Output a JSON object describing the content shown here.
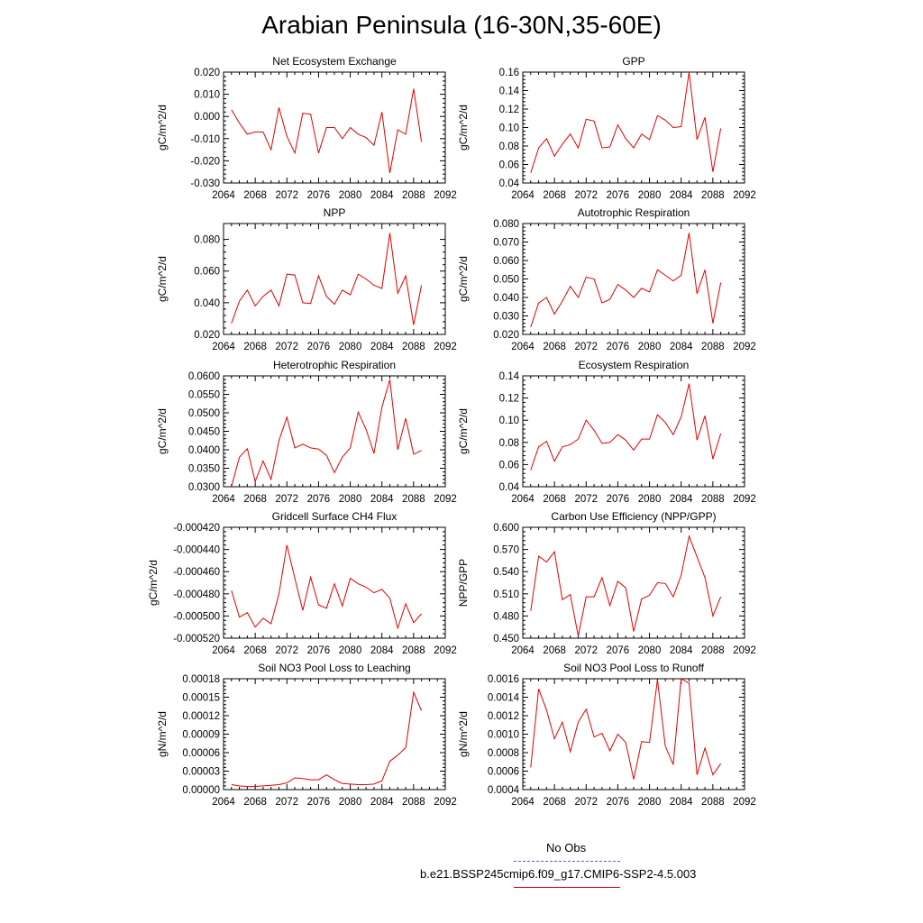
{
  "title": "Arabian Peninsula (16-30N,35-60E)",
  "legend": {
    "obs_label": "No Obs",
    "case_label": "b.e21.BSSP245cmip6.f09_g17.CMIP6-SSP2-4.5.003",
    "obs_color": "#5a5ad0",
    "case_color": "#e00000"
  },
  "chart_data": [
    {
      "type": "line",
      "title": "Net Ecosystem Exchange",
      "ylabel": "gC/m^2/d",
      "xlim": [
        2064,
        2092
      ],
      "ylim": [
        -0.03,
        0.02
      ],
      "yticks": [
        -0.03,
        -0.02,
        -0.01,
        0.0,
        0.01,
        0.02
      ],
      "ytick_labels": [
        "-0.030",
        "-0.020",
        "-0.010",
        "0.000",
        "0.010",
        "0.020"
      ],
      "xticks": [
        2064,
        2068,
        2072,
        2076,
        2080,
        2084,
        2088,
        2092
      ],
      "x": [
        2065,
        2066,
        2067,
        2068,
        2069,
        2070,
        2071,
        2072,
        2073,
        2074,
        2075,
        2076,
        2077,
        2078,
        2079,
        2080,
        2081,
        2082,
        2083,
        2084,
        2085,
        2086,
        2087,
        2088,
        2089
      ],
      "values": [
        0.003,
        -0.003,
        -0.008,
        -0.007,
        -0.007,
        -0.015,
        0.004,
        -0.009,
        -0.0165,
        0.0015,
        0.001,
        -0.0165,
        -0.005,
        -0.005,
        -0.01,
        -0.005,
        -0.008,
        -0.0095,
        -0.013,
        0.002,
        -0.0255,
        -0.006,
        -0.008,
        0.0125,
        -0.0115
      ]
    },
    {
      "type": "line",
      "title": "GPP",
      "ylabel": "gC/m^2/d",
      "xlim": [
        2064,
        2092
      ],
      "ylim": [
        0.04,
        0.16
      ],
      "yticks": [
        0.04,
        0.06,
        0.08,
        0.1,
        0.12,
        0.14,
        0.16
      ],
      "ytick_labels": [
        "0.04",
        "0.06",
        "0.08",
        "0.10",
        "0.12",
        "0.14",
        "0.16"
      ],
      "xticks": [
        2064,
        2068,
        2072,
        2076,
        2080,
        2084,
        2088,
        2092
      ],
      "x": [
        2065,
        2066,
        2067,
        2068,
        2069,
        2070,
        2071,
        2072,
        2073,
        2074,
        2075,
        2076,
        2077,
        2078,
        2079,
        2080,
        2081,
        2082,
        2083,
        2084,
        2085,
        2086,
        2087,
        2088,
        2089
      ],
      "values": [
        0.051,
        0.078,
        0.088,
        0.069,
        0.082,
        0.093,
        0.078,
        0.109,
        0.107,
        0.078,
        0.079,
        0.103,
        0.088,
        0.078,
        0.093,
        0.087,
        0.113,
        0.108,
        0.1,
        0.101,
        0.16,
        0.087,
        0.111,
        0.052,
        0.099
      ]
    },
    {
      "type": "line",
      "title": "NPP",
      "ylabel": "gC/m^2/d",
      "xlim": [
        2064,
        2092
      ],
      "ylim": [
        0.02,
        0.09
      ],
      "yticks": [
        0.02,
        0.04,
        0.06,
        0.08
      ],
      "ytick_labels": [
        "0.020",
        "0.040",
        "0.060",
        "0.080"
      ],
      "xticks": [
        2064,
        2068,
        2072,
        2076,
        2080,
        2084,
        2088,
        2092
      ],
      "x": [
        2065,
        2066,
        2067,
        2068,
        2069,
        2070,
        2071,
        2072,
        2073,
        2074,
        2075,
        2076,
        2077,
        2078,
        2079,
        2080,
        2081,
        2082,
        2083,
        2084,
        2085,
        2086,
        2087,
        2088,
        2089
      ],
      "values": [
        0.027,
        0.041,
        0.048,
        0.038,
        0.044,
        0.048,
        0.038,
        0.058,
        0.0575,
        0.04,
        0.0395,
        0.057,
        0.044,
        0.039,
        0.048,
        0.045,
        0.058,
        0.055,
        0.051,
        0.049,
        0.084,
        0.046,
        0.057,
        0.026,
        0.051
      ]
    },
    {
      "type": "line",
      "title": "Autotrophic Respiration",
      "ylabel": "gC/m^2/d",
      "xlim": [
        2064,
        2092
      ],
      "ylim": [
        0.02,
        0.08
      ],
      "yticks": [
        0.02,
        0.03,
        0.04,
        0.05,
        0.06,
        0.07,
        0.08
      ],
      "ytick_labels": [
        "0.020",
        "0.030",
        "0.040",
        "0.050",
        "0.060",
        "0.070",
        "0.080"
      ],
      "xticks": [
        2064,
        2068,
        2072,
        2076,
        2080,
        2084,
        2088,
        2092
      ],
      "x": [
        2065,
        2066,
        2067,
        2068,
        2069,
        2070,
        2071,
        2072,
        2073,
        2074,
        2075,
        2076,
        2077,
        2078,
        2079,
        2080,
        2081,
        2082,
        2083,
        2084,
        2085,
        2086,
        2087,
        2088,
        2089
      ],
      "values": [
        0.024,
        0.037,
        0.04,
        0.031,
        0.038,
        0.046,
        0.04,
        0.051,
        0.05,
        0.037,
        0.039,
        0.047,
        0.044,
        0.04,
        0.045,
        0.043,
        0.055,
        0.052,
        0.049,
        0.052,
        0.075,
        0.042,
        0.055,
        0.026,
        0.048
      ]
    },
    {
      "type": "line",
      "title": "Heterotrophic Respiration",
      "ylabel": "gC/m^2/d",
      "xlim": [
        2064,
        2092
      ],
      "ylim": [
        0.03,
        0.06
      ],
      "yticks": [
        0.03,
        0.035,
        0.04,
        0.045,
        0.05,
        0.055,
        0.06
      ],
      "ytick_labels": [
        "0.0300",
        "0.0350",
        "0.0400",
        "0.0450",
        "0.0500",
        "0.0550",
        "0.0600"
      ],
      "xticks": [
        2064,
        2068,
        2072,
        2076,
        2080,
        2084,
        2088,
        2092
      ],
      "x": [
        2065,
        2066,
        2067,
        2068,
        2069,
        2070,
        2071,
        2072,
        2073,
        2074,
        2075,
        2076,
        2077,
        2078,
        2079,
        2080,
        2081,
        2082,
        2083,
        2084,
        2085,
        2086,
        2087,
        2088,
        2089
      ],
      "values": [
        0.03,
        0.038,
        0.0403,
        0.0314,
        0.037,
        0.032,
        0.0425,
        0.0488,
        0.0405,
        0.0415,
        0.0405,
        0.0402,
        0.0385,
        0.0338,
        0.038,
        0.0405,
        0.0502,
        0.0455,
        0.039,
        0.0515,
        0.059,
        0.04,
        0.0485,
        0.0388,
        0.0398
      ]
    },
    {
      "type": "line",
      "title": "Ecosystem Respiration",
      "ylabel": "gC/m^2/d",
      "xlim": [
        2064,
        2092
      ],
      "ylim": [
        0.04,
        0.14
      ],
      "yticks": [
        0.04,
        0.06,
        0.08,
        0.1,
        0.12,
        0.14
      ],
      "ytick_labels": [
        "0.04",
        "0.06",
        "0.08",
        "0.10",
        "0.12",
        "0.14"
      ],
      "xticks": [
        2064,
        2068,
        2072,
        2076,
        2080,
        2084,
        2088,
        2092
      ],
      "x": [
        2065,
        2066,
        2067,
        2068,
        2069,
        2070,
        2071,
        2072,
        2073,
        2074,
        2075,
        2076,
        2077,
        2078,
        2079,
        2080,
        2081,
        2082,
        2083,
        2084,
        2085,
        2086,
        2087,
        2088,
        2089
      ],
      "values": [
        0.055,
        0.076,
        0.081,
        0.063,
        0.076,
        0.078,
        0.083,
        0.1,
        0.091,
        0.079,
        0.08,
        0.087,
        0.082,
        0.073,
        0.083,
        0.083,
        0.105,
        0.098,
        0.087,
        0.103,
        0.133,
        0.082,
        0.104,
        0.065,
        0.088
      ]
    },
    {
      "type": "line",
      "title": "Gridcell Surface CH4 Flux",
      "ylabel": "gC/m^2/d",
      "xlim": [
        2064,
        2092
      ],
      "ylim": [
        -0.00052,
        -0.00042
      ],
      "yticks": [
        -0.00052,
        -0.0005,
        -0.00048,
        -0.00046,
        -0.00044,
        -0.00042
      ],
      "ytick_labels": [
        "-0.000520",
        "-0.000500",
        "-0.000480",
        "-0.000460",
        "-0.000440",
        "-0.000420"
      ],
      "xticks": [
        2064,
        2068,
        2072,
        2076,
        2080,
        2084,
        2088,
        2092
      ],
      "x": [
        2065,
        2066,
        2067,
        2068,
        2069,
        2070,
        2071,
        2072,
        2073,
        2074,
        2075,
        2076,
        2077,
        2078,
        2079,
        2080,
        2081,
        2082,
        2083,
        2084,
        2085,
        2086,
        2087,
        2088,
        2089
      ],
      "values": [
        -0.000477,
        -0.000501,
        -0.000497,
        -0.00051,
        -0.000502,
        -0.000507,
        -0.00048,
        -0.000436,
        -0.000466,
        -0.000495,
        -0.000465,
        -0.00049,
        -0.000493,
        -0.000471,
        -0.000491,
        -0.000466,
        -0.000471,
        -0.000474,
        -0.000479,
        -0.000476,
        -0.000484,
        -0.000511,
        -0.000489,
        -0.000506,
        -0.000498
      ]
    },
    {
      "type": "line",
      "title": "Carbon Use Efficiency (NPP/GPP)",
      "ylabel": "NPP/GPP",
      "xlim": [
        2064,
        2092
      ],
      "ylim": [
        0.45,
        0.6
      ],
      "yticks": [
        0.45,
        0.48,
        0.51,
        0.54,
        0.57,
        0.6
      ],
      "ytick_labels": [
        "0.450",
        "0.480",
        "0.510",
        "0.540",
        "0.570",
        "0.600"
      ],
      "xticks": [
        2064,
        2068,
        2072,
        2076,
        2080,
        2084,
        2088,
        2092
      ],
      "x": [
        2065,
        2066,
        2067,
        2068,
        2069,
        2070,
        2071,
        2072,
        2073,
        2074,
        2075,
        2076,
        2077,
        2078,
        2079,
        2080,
        2081,
        2082,
        2083,
        2084,
        2085,
        2086,
        2087,
        2088,
        2089
      ],
      "values": [
        0.487,
        0.561,
        0.553,
        0.567,
        0.502,
        0.509,
        0.453,
        0.506,
        0.506,
        0.532,
        0.494,
        0.527,
        0.518,
        0.459,
        0.503,
        0.508,
        0.525,
        0.524,
        0.506,
        0.535,
        0.588,
        0.56,
        0.532,
        0.48,
        0.506
      ]
    },
    {
      "type": "line",
      "title": "Soil NO3 Pool Loss to Leaching",
      "ylabel": "gN/m^2/d",
      "xlim": [
        2064,
        2092
      ],
      "ylim": [
        0.0,
        0.00018
      ],
      "yticks": [
        0.0,
        3e-05,
        6e-05,
        9e-05,
        0.00012,
        0.00015,
        0.00018
      ],
      "ytick_labels": [
        "0.00000",
        "0.00003",
        "0.00006",
        "0.00009",
        "0.00012",
        "0.00015",
        "0.00018"
      ],
      "xticks": [
        2064,
        2068,
        2072,
        2076,
        2080,
        2084,
        2088,
        2092
      ],
      "x": [
        2065,
        2066,
        2067,
        2068,
        2069,
        2070,
        2071,
        2072,
        2073,
        2074,
        2075,
        2076,
        2077,
        2078,
        2079,
        2080,
        2081,
        2082,
        2083,
        2084,
        2085,
        2086,
        2087,
        2088,
        2089
      ],
      "values": [
        8e-06,
        6e-06,
        5e-06,
        5e-06,
        6e-06,
        7e-06,
        8e-06,
        1.1e-05,
        1.9e-05,
        1.8e-05,
        1.6e-05,
        1.6e-05,
        2.4e-05,
        1.6e-05,
        1e-05,
        9e-06,
        8e-06,
        8e-06,
        9e-06,
        1.4e-05,
        4.6e-05,
        5.6e-05,
        6.8e-05,
        0.000158,
        0.000128
      ]
    },
    {
      "type": "line",
      "title": "Soil NO3 Pool Loss to Runoff",
      "ylabel": "gN/m^2/d",
      "xlim": [
        2064,
        2092
      ],
      "ylim": [
        0.0004,
        0.0016
      ],
      "yticks": [
        0.0004,
        0.0006,
        0.0008,
        0.001,
        0.0012,
        0.0014,
        0.0016
      ],
      "ytick_labels": [
        "0.0004",
        "0.0006",
        "0.0008",
        "0.0010",
        "0.0012",
        "0.0014",
        "0.0016"
      ],
      "xticks": [
        2064,
        2068,
        2072,
        2076,
        2080,
        2084,
        2088,
        2092
      ],
      "x": [
        2065,
        2066,
        2067,
        2068,
        2069,
        2070,
        2071,
        2072,
        2073,
        2074,
        2075,
        2076,
        2077,
        2078,
        2079,
        2080,
        2081,
        2082,
        2083,
        2084,
        2085,
        2086,
        2087,
        2088,
        2089
      ],
      "values": [
        0.00064,
        0.00149,
        0.00126,
        0.00095,
        0.00113,
        0.00081,
        0.00113,
        0.00127,
        0.00097,
        0.00101,
        0.00082,
        0.001,
        0.00091,
        0.00051,
        0.00092,
        0.00091,
        0.00159,
        0.00087,
        0.00067,
        0.0016,
        0.00155,
        0.00056,
        0.00085,
        0.00056,
        0.00068
      ]
    }
  ]
}
